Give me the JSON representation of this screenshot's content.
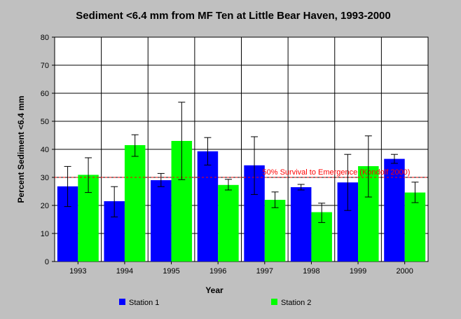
{
  "chart_data": {
    "type": "bar",
    "title": "Sediment <6.4 mm from MF Ten at Little Bear Haven, 1993-2000",
    "xlabel": "Year",
    "ylabel": "Percent Sediment <6.4 mm",
    "ylim": [
      0,
      80
    ],
    "yticks": [
      0,
      10,
      20,
      30,
      40,
      50,
      60,
      70,
      80
    ],
    "grid": true,
    "legend_position": "bottom",
    "categories": [
      "1993",
      "1994",
      "1995",
      "1996",
      "1997",
      "1998",
      "1999",
      "2000"
    ],
    "series": [
      {
        "name": "Station 1",
        "color": "#0000ff",
        "values": [
          26.8,
          21.5,
          29.0,
          39.3,
          34.3,
          26.5,
          28.2,
          36.6
        ],
        "error_low": [
          19.6,
          15.9,
          26.7,
          34.4,
          23.9,
          25.5,
          18.2,
          35.0
        ],
        "error_high": [
          33.9,
          26.7,
          31.4,
          44.2,
          44.5,
          27.5,
          38.2,
          38.2
        ]
      },
      {
        "name": "Station 2",
        "color": "#00ff00",
        "values": [
          30.9,
          41.5,
          43.0,
          27.3,
          22.0,
          17.6,
          34.0,
          24.6
        ],
        "error_low": [
          24.6,
          37.5,
          29.2,
          25.5,
          19.2,
          13.9,
          23.0,
          21.0
        ],
        "error_high": [
          37.0,
          45.2,
          56.8,
          29.3,
          24.8,
          20.8,
          44.8,
          28.3
        ]
      }
    ],
    "reference_line": {
      "value": 30,
      "label": "50% Survival to Emergence (Kondolf 2000)",
      "color": "#ff0000"
    }
  }
}
